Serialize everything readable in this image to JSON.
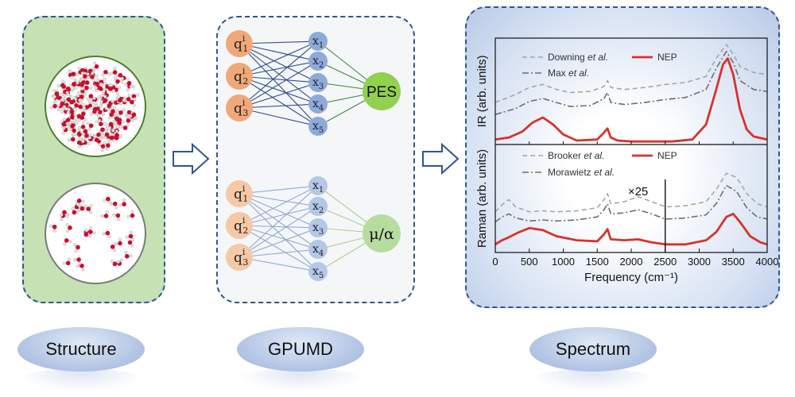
{
  "labels": {
    "structure": "Structure",
    "gpumd": "GPUMD",
    "spectrum": "Spectrum"
  },
  "network": {
    "inputs": [
      "1",
      "2",
      "3"
    ],
    "input_prefix": "q",
    "input_superscript": "i",
    "hidden_prefix": "x",
    "hidden": [
      "1",
      "2",
      "3",
      "4",
      "5"
    ],
    "output_top": "PES",
    "output_bottom": "μ/α"
  },
  "colors": {
    "panel_border": "#2f5597",
    "structure_bg": "#c6e2b4",
    "input_node_dark": "#f0a878",
    "input_node_light": "#f6c8a6",
    "hidden_node_dark": "#8eaadb",
    "hidden_node_light": "#b4c7e7",
    "output_node_dark": "#92d050",
    "output_node_light": "#b8dca0",
    "nep_line": "#d9322a"
  },
  "chart_data": [
    {
      "type": "line",
      "ylabel": "IR (arb. units)",
      "xlim": [
        0,
        4000
      ],
      "legend": {
        "placement": "top",
        "entries": [
          {
            "prefix": "Downing ",
            "italic": "et al.",
            "style": "dashed"
          },
          {
            "prefix": "NEP",
            "italic": "",
            "style": "solid"
          },
          {
            "prefix": "Max ",
            "italic": "et al.",
            "style": "dashdot"
          }
        ]
      },
      "series": [
        {
          "name": "Downing et al.",
          "style": "dashed",
          "x": [
            0,
            300,
            500,
            700,
            900,
            1100,
            1400,
            1600,
            1650,
            1700,
            1900,
            2200,
            2500,
            2800,
            3100,
            3250,
            3400,
            3500,
            3600,
            3800,
            4000
          ],
          "y": [
            0.42,
            0.5,
            0.57,
            0.6,
            0.55,
            0.52,
            0.53,
            0.58,
            0.64,
            0.57,
            0.55,
            0.57,
            0.6,
            0.62,
            0.68,
            0.86,
            1.0,
            0.9,
            0.78,
            0.72,
            0.7
          ]
        },
        {
          "name": "Max et al.",
          "style": "dashdot",
          "x": [
            0,
            300,
            500,
            700,
            900,
            1100,
            1400,
            1600,
            1650,
            1700,
            1900,
            2200,
            2500,
            2800,
            3100,
            3250,
            3400,
            3500,
            3600,
            3800,
            4000
          ],
          "y": [
            0.3,
            0.36,
            0.43,
            0.46,
            0.42,
            0.38,
            0.39,
            0.46,
            0.52,
            0.42,
            0.4,
            0.42,
            0.45,
            0.47,
            0.55,
            0.76,
            0.93,
            0.82,
            0.64,
            0.55,
            0.53
          ]
        },
        {
          "name": "NEP",
          "style": "solid",
          "x": [
            0,
            200,
            400,
            550,
            700,
            850,
            1000,
            1200,
            1500,
            1600,
            1650,
            1700,
            1800,
            2000,
            2300,
            2600,
            2900,
            3100,
            3250,
            3350,
            3420,
            3500,
            3600,
            3700,
            3800,
            4000
          ],
          "y": [
            0.05,
            0.07,
            0.13,
            0.22,
            0.27,
            0.2,
            0.1,
            0.04,
            0.05,
            0.12,
            0.16,
            0.07,
            0.04,
            0.03,
            0.03,
            0.03,
            0.05,
            0.2,
            0.55,
            0.8,
            0.86,
            0.7,
            0.35,
            0.15,
            0.08,
            0.05
          ]
        }
      ]
    },
    {
      "type": "line",
      "xlabel": "Frequency (cm⁻¹)",
      "ylabel": "Raman (arb. units)",
      "xlim": [
        0,
        4000
      ],
      "xticks": [
        0,
        500,
        1000,
        1500,
        2000,
        2500,
        3000,
        3500,
        4000
      ],
      "annotation": "×25",
      "annotation_x": 2100,
      "divider_x": 2500,
      "legend": {
        "placement": "top",
        "entries": [
          {
            "prefix": "Brooker ",
            "italic": "et al.",
            "style": "dashed"
          },
          {
            "prefix": "NEP",
            "italic": "",
            "style": "solid"
          },
          {
            "prefix": "Morawietz ",
            "italic": "et al.",
            "style": "dashdot"
          }
        ]
      },
      "series": [
        {
          "name": "Brooker et al.",
          "style": "dashed",
          "x": [
            0,
            100,
            200,
            300,
            500,
            700,
            900,
            1200,
            1500,
            1600,
            1650,
            1700,
            1900,
            2100,
            2300,
            2500,
            2550,
            2800,
            3100,
            3250,
            3400,
            3550,
            3700,
            3850,
            4000
          ],
          "y": [
            0.4,
            0.47,
            0.52,
            0.45,
            0.4,
            0.41,
            0.4,
            0.41,
            0.44,
            0.52,
            0.58,
            0.48,
            0.5,
            0.55,
            0.5,
            0.45,
            0.45,
            0.46,
            0.5,
            0.62,
            0.78,
            0.74,
            0.58,
            0.48,
            0.45
          ]
        },
        {
          "name": "Morawietz et al.",
          "style": "dashdot",
          "x": [
            0,
            100,
            200,
            300,
            500,
            700,
            900,
            1200,
            1500,
            1600,
            1650,
            1700,
            1900,
            2100,
            2300,
            2500,
            2550,
            2800,
            3100,
            3250,
            3400,
            3550,
            3700,
            3850,
            4000
          ],
          "y": [
            0.3,
            0.35,
            0.38,
            0.34,
            0.31,
            0.32,
            0.31,
            0.32,
            0.35,
            0.42,
            0.48,
            0.38,
            0.39,
            0.42,
            0.38,
            0.33,
            0.33,
            0.34,
            0.37,
            0.48,
            0.66,
            0.6,
            0.44,
            0.35,
            0.33
          ]
        },
        {
          "name": "NEP",
          "style": "solid",
          "x": [
            0,
            100,
            200,
            350,
            500,
            700,
            900,
            1200,
            1500,
            1600,
            1650,
            1700,
            1900,
            2100,
            2300,
            2500,
            2550,
            2800,
            3100,
            3250,
            3400,
            3500,
            3600,
            3750,
            3900,
            4000
          ],
          "y": [
            0.08,
            0.12,
            0.15,
            0.2,
            0.24,
            0.22,
            0.16,
            0.12,
            0.11,
            0.18,
            0.23,
            0.13,
            0.12,
            0.13,
            0.1,
            0.08,
            0.08,
            0.08,
            0.12,
            0.2,
            0.35,
            0.38,
            0.3,
            0.16,
            0.1,
            0.08
          ]
        }
      ]
    }
  ]
}
